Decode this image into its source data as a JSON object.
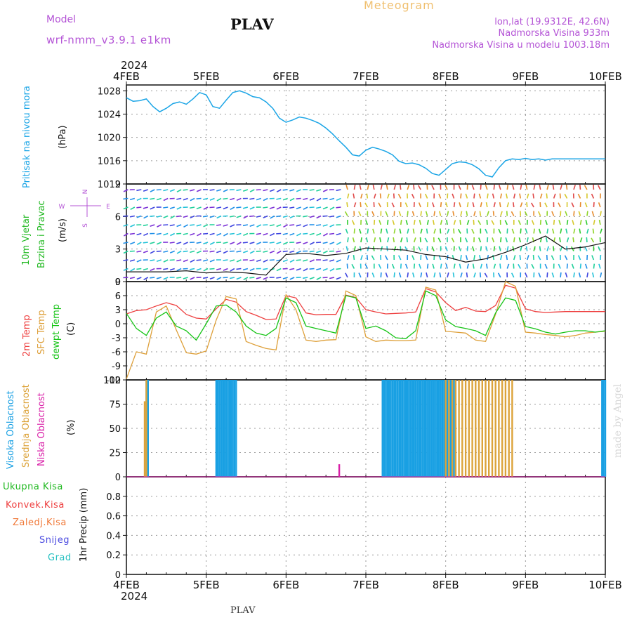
{
  "header": {
    "model_label": "Model",
    "model_value": "wrf-nmm_v3.9.1  e1km",
    "station": "PLAV",
    "title": "Meteogram",
    "coords": "lon,lat (19.9312E, 42.6N)",
    "elevation": "Nadmorska Visina 933m",
    "model_elevation": "Nadmorska Visina u modelu 1003.18m",
    "footer_station": "PLAV",
    "credit": "made by Angel"
  },
  "colors": {
    "pressure": "#1ba5e6",
    "wind_label": "#1fb81f",
    "temp2m": "#ee3f3f",
    "sfc": "#dea03a",
    "dew": "#16c416",
    "high_cloud": "#19a0e3",
    "mid_cloud": "#dca33a",
    "low_cloud": "#d91ea7",
    "purple": "#b454d6",
    "total_precip": "#1fb81f",
    "conv_precip": "#ee3f3f",
    "frozen_precip": "#f07a3a",
    "snow": "#4d4de0",
    "graupel": "#27c1c1"
  },
  "chart_data": [
    {
      "type": "line",
      "panel": "pressure",
      "ylabel": [
        "Pritisak na nivou mora",
        "(hPa)"
      ],
      "x_ticks": [
        "4FEB",
        "5FEB",
        "6FEB",
        "7FEB",
        "8FEB",
        "9FEB",
        "10FEB"
      ],
      "x_year": "2024",
      "ylim": [
        1012,
        1029
      ],
      "yticks": [
        1028,
        1024,
        1020,
        1016,
        1012
      ],
      "grid": true,
      "series": [
        {
          "x_hours": [
            0,
            2,
            4,
            6,
            8,
            10,
            12,
            14,
            16,
            18,
            20,
            22,
            24,
            26,
            28,
            30,
            32,
            34,
            36,
            38,
            40,
            42,
            44,
            46,
            48,
            50,
            52,
            54,
            56,
            58,
            60,
            62,
            64,
            66,
            68,
            70,
            72,
            74,
            76,
            78,
            80,
            82,
            84,
            86,
            88,
            90,
            92,
            94,
            96,
            98,
            100,
            102,
            104,
            106,
            108,
            110,
            112,
            114,
            116,
            118,
            120,
            122,
            124,
            126,
            128,
            130,
            132,
            134,
            136,
            138,
            140,
            142,
            144
          ],
          "values": [
            1026.8,
            1026.2,
            1026.3,
            1026.6,
            1025.3,
            1024.4,
            1025.0,
            1025.8,
            1026.1,
            1025.7,
            1026.6,
            1027.7,
            1027.3,
            1025.3,
            1025.0,
            1026.4,
            1027.7,
            1028.0,
            1027.6,
            1027.0,
            1026.8,
            1026.1,
            1025.0,
            1023.3,
            1022.6,
            1023.0,
            1023.5,
            1023.3,
            1022.9,
            1022.4,
            1021.6,
            1020.6,
            1019.4,
            1018.3,
            1017.0,
            1016.8,
            1017.8,
            1018.3,
            1018.0,
            1017.6,
            1017.0,
            1015.9,
            1015.5,
            1015.6,
            1015.3,
            1014.7,
            1013.8,
            1013.5,
            1014.5,
            1015.5,
            1015.8,
            1015.7,
            1015.3,
            1014.6,
            1013.5,
            1013.2,
            1014.8,
            1016.0,
            1016.3,
            1016.2,
            1016.4,
            1016.2,
            1016.3,
            1016.1,
            1016.3,
            1016.3,
            1016.3,
            1016.3,
            1016.3,
            1016.3,
            1016.3,
            1016.3,
            1016.3
          ]
        }
      ]
    },
    {
      "type": "scatter",
      "panel": "wind",
      "ylabel": [
        "10m Vjetar",
        "Brzina i Pravac",
        "(m/s)"
      ],
      "compass": {
        "north": "N",
        "south": "S",
        "west": "W",
        "east": "E"
      },
      "ylim": [
        0,
        9
      ],
      "yticks": [
        9,
        6,
        3,
        0
      ],
      "grid": true,
      "series": [
        {
          "name": "wind speed",
          "x_hours": [
            0,
            6,
            12,
            18,
            24,
            30,
            36,
            42,
            48,
            54,
            60,
            66,
            72,
            78,
            84,
            90,
            96,
            102,
            108,
            114,
            120,
            126,
            132,
            138,
            144
          ],
          "values": [
            0.9,
            0.9,
            0.9,
            1.0,
            0.8,
            0.9,
            0.8,
            0.6,
            2.5,
            2.6,
            2.4,
            2.6,
            3.1,
            3.0,
            2.9,
            2.5,
            2.3,
            1.8,
            2.1,
            2.7,
            3.4,
            4.2,
            3.0,
            3.2,
            3.6
          ]
        }
      ]
    },
    {
      "type": "line",
      "panel": "temperature",
      "ylabel": [
        "2m Temp",
        "SFC Temp",
        "dewpt Temp",
        "(C)"
      ],
      "ylim": [
        -12,
        9
      ],
      "yticks": [
        9,
        6,
        3,
        0,
        -3,
        -6,
        -9,
        -12
      ],
      "grid": true,
      "x_hours": [
        0,
        3,
        6,
        9,
        12,
        15,
        18,
        21,
        24,
        27,
        30,
        33,
        36,
        39,
        42,
        45,
        48,
        51,
        54,
        57,
        60,
        63,
        66,
        69,
        72,
        75,
        78,
        81,
        84,
        87,
        90,
        93,
        96,
        99,
        102,
        105,
        108,
        111,
        114,
        117,
        120,
        123,
        126,
        129,
        132,
        135,
        138,
        141,
        144
      ],
      "series": [
        {
          "name": "2m Temp",
          "values": [
            2.1,
            2.8,
            3.0,
            3.8,
            4.5,
            3.9,
            2.0,
            1.2,
            1.0,
            3.2,
            5.2,
            4.6,
            2.6,
            1.8,
            0.9,
            1.0,
            6.0,
            5.5,
            2.3,
            1.9,
            2.0,
            2.0,
            6.1,
            5.6,
            3.0,
            2.5,
            2.1,
            2.2,
            2.3,
            2.5,
            7.5,
            6.8,
            4.5,
            2.8,
            3.5,
            2.7,
            2.6,
            3.9,
            8.2,
            7.6,
            3.2,
            2.6,
            2.4,
            2.5,
            2.6,
            2.6,
            2.6,
            2.6,
            2.6
          ]
        },
        {
          "name": "SFC Temp",
          "values": [
            -11.8,
            -6.0,
            -6.5,
            2.5,
            3.8,
            -1.3,
            -6.2,
            -6.5,
            -5.8,
            0.8,
            5.8,
            5.3,
            -3.8,
            -4.6,
            -5.3,
            -5.6,
            6.2,
            3.0,
            -3.5,
            -3.8,
            -3.5,
            -3.4,
            7.0,
            6.0,
            -2.8,
            -3.8,
            -3.5,
            -3.6,
            -3.6,
            -3.5,
            7.8,
            7.2,
            -1.6,
            -1.8,
            -2.0,
            -3.5,
            -3.8,
            2.0,
            9.0,
            8.0,
            -1.8,
            -2.0,
            -2.3,
            -2.5,
            -2.8,
            -2.5,
            -2.0,
            -1.8,
            -1.6
          ]
        },
        {
          "name": "dewpt Temp",
          "values": [
            2.2,
            -1.0,
            -2.5,
            1.2,
            2.5,
            -0.5,
            -1.5,
            -3.5,
            0.0,
            3.8,
            4.0,
            2.5,
            -0.5,
            -2.0,
            -2.5,
            -1.0,
            5.5,
            4.5,
            -0.5,
            -1.0,
            -1.5,
            -2.0,
            6.0,
            5.5,
            -1.0,
            -0.5,
            -1.5,
            -3.0,
            -3.2,
            -1.5,
            7.0,
            6.0,
            0.8,
            -0.6,
            -1.0,
            -1.5,
            -2.5,
            2.3,
            5.5,
            5.0,
            -0.6,
            -1.1,
            -1.8,
            -2.2,
            -1.8,
            -1.5,
            -1.5,
            -1.8,
            -1.5
          ]
        }
      ]
    },
    {
      "type": "bar",
      "panel": "cloud",
      "ylabel": [
        "Visoka Oblacnost",
        "Srednja Oblacnost",
        "Niska Oblacnost",
        "(%)"
      ],
      "ylim": [
        0,
        100
      ],
      "yticks": [
        100,
        75,
        50,
        25,
        0
      ],
      "grid": true,
      "series": [
        {
          "name": "Visoka Oblacnost",
          "x_hours": [
            6,
            6.5,
            27,
            27.5,
            28,
            28.5,
            29,
            29.5,
            30,
            30.5,
            31,
            31.5,
            32,
            32.5,
            33,
            77,
            77.5,
            78,
            78.5,
            79,
            79.5,
            80,
            80.5,
            81,
            81.5,
            82,
            82.5,
            83,
            83.5,
            84,
            84.5,
            85,
            85.5,
            86,
            86.5,
            87,
            87.5,
            88,
            88.5,
            89,
            89.5,
            90,
            90.5,
            91,
            91.5,
            92,
            92.5,
            93,
            93.5,
            94,
            94.5,
            95,
            95.5,
            96,
            96.5,
            97,
            97.5,
            98,
            98.5,
            143,
            143.5,
            144
          ],
          "values": [
            100,
            100,
            100,
            100,
            100,
            100,
            100,
            100,
            100,
            100,
            100,
            100,
            100,
            100,
            100,
            100,
            100,
            100,
            100,
            100,
            100,
            100,
            100,
            100,
            100,
            100,
            100,
            100,
            100,
            100,
            100,
            100,
            100,
            100,
            100,
            100,
            100,
            100,
            100,
            100,
            100,
            100,
            100,
            100,
            100,
            100,
            100,
            100,
            100,
            100,
            100,
            100,
            100,
            100,
            100,
            100,
            100,
            100,
            100,
            100,
            100,
            100
          ]
        },
        {
          "name": "Srednja Oblacnost",
          "x_hours": [
            5.5,
            6,
            96,
            97,
            98,
            99,
            100,
            101,
            102,
            103,
            104,
            105,
            106,
            107,
            108,
            109,
            110,
            111,
            112,
            113,
            114,
            115,
            116
          ],
          "values": [
            78,
            100,
            100,
            100,
            100,
            100,
            100,
            100,
            100,
            100,
            100,
            100,
            100,
            100,
            100,
            100,
            100,
            100,
            100,
            100,
            100,
            100,
            100
          ]
        },
        {
          "name": "Niska Oblacnost",
          "x_hours": [
            64
          ],
          "values": [
            13
          ]
        }
      ]
    },
    {
      "type": "line",
      "panel": "precip",
      "ylabel": [
        "1hr Precip (mm)"
      ],
      "legend": [
        "Ukupna Kisa",
        "Konvek.Kisa",
        "Zaledj.Kisa",
        "Snijeg",
        "Grad"
      ],
      "ylim": [
        0,
        1
      ],
      "yticks": [
        0.8,
        0.6,
        0.4,
        0.2,
        0
      ],
      "grid": true,
      "x_ticks": [
        "4FEB",
        "5FEB",
        "6FEB",
        "7FEB",
        "8FEB",
        "9FEB",
        "10FEB"
      ],
      "x_year": "2024",
      "series": [
        {
          "name": "Ukupna Kisa",
          "values": []
        },
        {
          "name": "Konvek.Kisa",
          "values": []
        },
        {
          "name": "Zaledj.Kisa",
          "values": []
        },
        {
          "name": "Snijeg",
          "values": []
        },
        {
          "name": "Grad",
          "values": []
        }
      ]
    }
  ]
}
